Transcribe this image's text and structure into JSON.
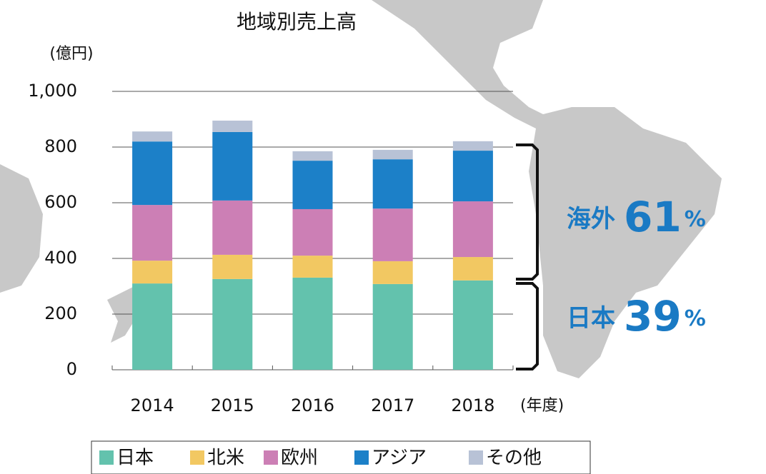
{
  "chart_data": {
    "type": "stacked_bar",
    "title": "地域別売上高",
    "y_label": "(億円)",
    "x_label": "(年度)",
    "categories": [
      "2014",
      "2015",
      "2016",
      "2017",
      "2018"
    ],
    "series": [
      {
        "name": "日本",
        "color": "#63c2ad",
        "values": [
          310,
          326,
          331,
          308,
          321
        ]
      },
      {
        "name": "北米",
        "color": "#f2c862",
        "values": [
          82,
          87,
          79,
          82,
          84
        ]
      },
      {
        "name": "欧州",
        "color": "#cc7fb5",
        "values": [
          200,
          195,
          167,
          189,
          200
        ]
      },
      {
        "name": "アジア",
        "color": "#1c80c8",
        "values": [
          228,
          246,
          174,
          177,
          182
        ]
      },
      {
        "name": "その他",
        "color": "#b8c2d6",
        "values": [
          36,
          41,
          34,
          34,
          34
        ]
      }
    ],
    "ylim": [
      0,
      1000
    ],
    "yticks": [
      0,
      200,
      400,
      600,
      800,
      {
        "value": 1000,
        "label": "1,000"
      }
    ],
    "grid": true,
    "annotations": [
      {
        "label": "海外",
        "value": 61,
        "unit": "%"
      },
      {
        "label": "日本",
        "value": 39,
        "unit": "%"
      }
    ]
  }
}
